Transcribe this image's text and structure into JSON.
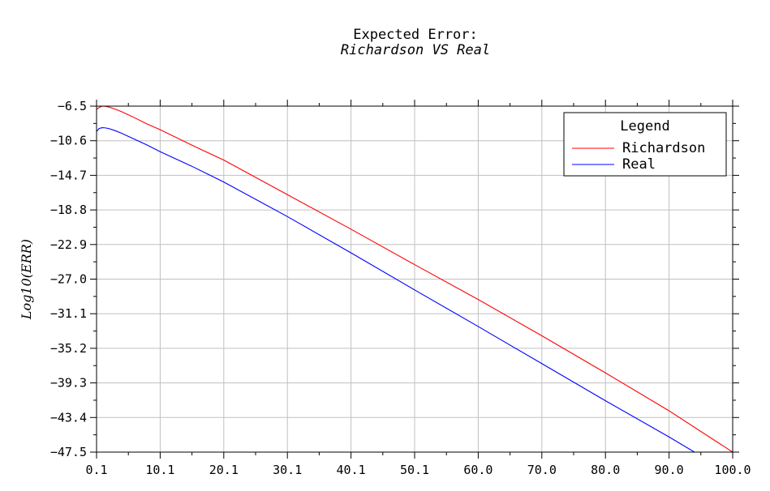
{
  "chart_data": {
    "type": "line",
    "title": "Expected Error:",
    "subtitle": "Richardson VS Real",
    "xlabel": "",
    "ylabel": "Log10(ERR)",
    "xlim": [
      0.1,
      100.0
    ],
    "ylim": [
      -47.5,
      -6.5
    ],
    "xticks": [
      "0.1",
      "10.1",
      "20.1",
      "30.1",
      "40.1",
      "50.1",
      "60.0",
      "70.0",
      "80.0",
      "90.0",
      "100.0"
    ],
    "yticks": [
      "-6.5",
      "-10.6",
      "-14.7",
      "-18.8",
      "-22.9",
      "-27.0",
      "-31.1",
      "-35.2",
      "-39.3",
      "-43.4",
      "-47.5"
    ],
    "grid": true,
    "legend": {
      "title": "Legend",
      "placement": "top-right"
    },
    "series": [
      {
        "name": "Richardson",
        "color": "#ff0000",
        "x": [
          0.1,
          0.5,
          1,
          1.5,
          2,
          3,
          4,
          5,
          6,
          8,
          10.1,
          15,
          20.1,
          30.1,
          40.1,
          50.1,
          60.0,
          70.0,
          80.0,
          90.0,
          100.0
        ],
        "y": [
          -6.9,
          -6.65,
          -6.5,
          -6.52,
          -6.6,
          -6.85,
          -7.15,
          -7.5,
          -7.85,
          -8.6,
          -9.3,
          -11.1,
          -12.9,
          -17.0,
          -21.1,
          -25.3,
          -29.4,
          -33.7,
          -38.1,
          -42.6,
          -47.5
        ]
      },
      {
        "name": "Real",
        "color": "#0000ff",
        "x": [
          0.1,
          0.5,
          1,
          1.5,
          2,
          3,
          4,
          5,
          6,
          8,
          10.1,
          15,
          20.1,
          30.1,
          40.1,
          50.1,
          60.0,
          70.0,
          80.0,
          90.0,
          94.0
        ],
        "y": [
          -9.5,
          -9.15,
          -9.05,
          -9.08,
          -9.15,
          -9.4,
          -9.7,
          -10.05,
          -10.4,
          -11.1,
          -11.9,
          -13.6,
          -15.5,
          -19.6,
          -23.9,
          -28.3,
          -32.6,
          -37.0,
          -41.4,
          -45.7,
          -47.5
        ]
      }
    ]
  }
}
